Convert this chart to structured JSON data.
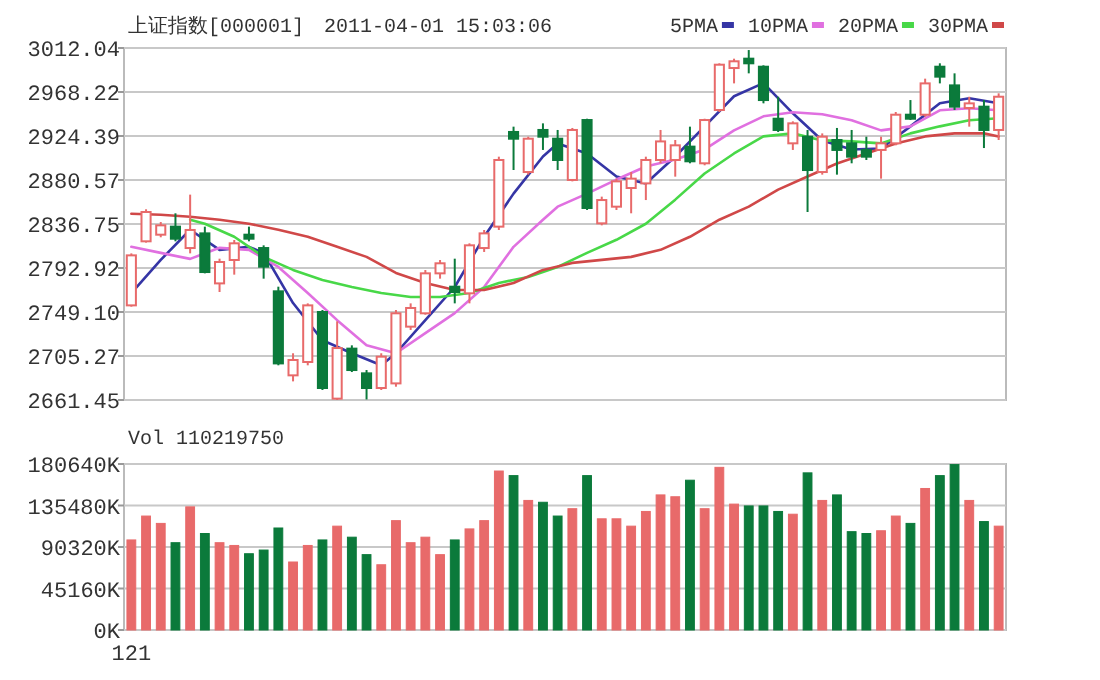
{
  "chart_data": [
    {
      "type": "candlestick",
      "title": "上证指数[000001]",
      "subtitle": "2011-04-01 15:03:06",
      "categories": [
        null,
        null,
        null,
        null,
        null,
        null,
        null,
        null,
        null,
        null,
        null,
        null,
        null,
        null,
        null,
        null,
        null,
        null,
        null,
        null,
        null,
        null,
        null,
        null,
        null,
        null,
        null,
        null,
        null,
        null,
        null,
        null,
        null,
        null,
        null,
        null,
        null,
        null,
        null,
        null,
        null,
        null,
        null,
        null,
        null,
        null,
        null,
        null,
        null,
        null,
        null,
        null,
        null,
        null,
        null,
        null,
        null,
        null,
        null,
        null
      ],
      "ohlc": [
        [
          2755.7,
          2807.5,
          2754.4,
          2805.5
        ],
        [
          2819.5,
          2851.4,
          2818.2,
          2848.7
        ],
        [
          2826.1,
          2838.7,
          2823.5,
          2835.4
        ],
        [
          2834.1,
          2847.4,
          2819.5,
          2822.1
        ],
        [
          2812.8,
          2866,
          2807.5,
          2830.8
        ],
        [
          2827.4,
          2834.1,
          2787.6,
          2788.9
        ],
        [
          2777.6,
          2802.2,
          2769,
          2798.9
        ],
        [
          2800.9,
          2820.8,
          2786.3,
          2817.5
        ],
        [
          2826.1,
          2834.1,
          2819.5,
          2822.1
        ],
        [
          2812.8,
          2815.5,
          2782.3,
          2794.2
        ],
        [
          2769.7,
          2774.3,
          2696,
          2697.9
        ],
        [
          2686,
          2708,
          2680,
          2701.3
        ],
        [
          2699.3,
          2757.7,
          2696,
          2755.7
        ],
        [
          2749.1,
          2751.1,
          2671.4,
          2673.4
        ],
        [
          2662.8,
          2739.8,
          2661.5,
          2713.2
        ],
        [
          2712.6,
          2715.9,
          2689.3,
          2691.3
        ],
        [
          2688,
          2691.3,
          2662,
          2673.4
        ],
        [
          2673.4,
          2708,
          2671.4,
          2704.6
        ],
        [
          2678,
          2751.1,
          2674.7,
          2747.8
        ],
        [
          2734.5,
          2757.7,
          2731.2,
          2753.1
        ],
        [
          2747.8,
          2790.9,
          2746.4,
          2787.6
        ],
        [
          2787.6,
          2800.9,
          2782.3,
          2797.6
        ],
        [
          2774.3,
          2802.2,
          2757.7,
          2769
        ],
        [
          2767.7,
          2817.5,
          2757.7,
          2815.5
        ],
        [
          2812.8,
          2830.8,
          2808.9,
          2827.4
        ],
        [
          2834.1,
          2903.8,
          2830.8,
          2900.5
        ],
        [
          2928.4,
          2933.7,
          2890.5,
          2921.7
        ],
        [
          2888.5,
          2923.7,
          2885.9,
          2921.7
        ],
        [
          2930.4,
          2937,
          2910.5,
          2923.7
        ],
        [
          2921.7,
          2930.4,
          2890.5,
          2900.5
        ],
        [
          2880.6,
          2932.4,
          2879.2,
          2930.4
        ],
        [
          2940.3,
          2941.6,
          2850.7,
          2852.7
        ],
        [
          2837.4,
          2864,
          2835.4,
          2860.6
        ],
        [
          2854,
          2881.9,
          2850.7,
          2879.2
        ],
        [
          2872.6,
          2888.5,
          2847.4,
          2881.9
        ],
        [
          2877.2,
          2903.8,
          2860.6,
          2900.5
        ],
        [
          2900.5,
          2930.4,
          2897.2,
          2919
        ],
        [
          2900.5,
          2920.4,
          2883.9,
          2915.1
        ],
        [
          2913.8,
          2933.7,
          2897.2,
          2899.2
        ],
        [
          2897.2,
          2941.6,
          2895.2,
          2940.3
        ],
        [
          2950.3,
          2996.8,
          2948.3,
          2995.4
        ],
        [
          2992.1,
          3001.4,
          2976.8,
          2998.8
        ],
        [
          3001.4,
          3010,
          2986.8,
          2996.8
        ],
        [
          2993.4,
          2994.8,
          2956.9,
          2960.2
        ],
        [
          2941.6,
          2963.5,
          2928.4,
          2930.4
        ],
        [
          2917.1,
          2939,
          2910.5,
          2937
        ],
        [
          2923.7,
          2930.4,
          2848.7,
          2890.5
        ],
        [
          2888.5,
          2927,
          2885.9,
          2923.7
        ],
        [
          2920.4,
          2932.4,
          2885.9,
          2910.5
        ],
        [
          2917.1,
          2930.4,
          2897.2,
          2903.8
        ],
        [
          2910.5,
          2923.7,
          2900.5,
          2903.8
        ],
        [
          2910.5,
          2923.7,
          2881.9,
          2917.1
        ],
        [
          2917.1,
          2948.3,
          2915.1,
          2945.6
        ],
        [
          2945.6,
          2960.2,
          2940.3,
          2941.6
        ],
        [
          2945.6,
          2981.5,
          2943.6,
          2976.8
        ],
        [
          2993.4,
          2996.8,
          2976.8,
          2983.5
        ],
        [
          2974.8,
          2986.8,
          2950.3,
          2953.6
        ],
        [
          2952.3,
          2963.5,
          2933.7,
          2956.9
        ],
        [
          2953.6,
          2960.2,
          2912.4,
          2930.4
        ],
        [
          2930.4,
          2966.9,
          2920.4,
          2963.5
        ]
      ],
      "colors": [
        "#e86a6a",
        "#e86a6a",
        "#e86a6a",
        "#0b7a3b",
        "#e86a6a",
        "#0b7a3b",
        "#e86a6a",
        "#e86a6a",
        "#0b7a3b",
        "#0b7a3b",
        "#0b7a3b",
        "#e86a6a",
        "#e86a6a",
        "#0b7a3b",
        "#e86a6a",
        "#0b7a3b",
        "#0b7a3b",
        "#e86a6a",
        "#e86a6a",
        "#e86a6a",
        "#e86a6a",
        "#e86a6a",
        "#0b7a3b",
        "#e86a6a",
        "#e86a6a",
        "#e86a6a",
        "#0b7a3b",
        "#e86a6a",
        "#0b7a3b",
        "#0b7a3b",
        "#e86a6a",
        "#0b7a3b",
        "#e86a6a",
        "#e86a6a",
        "#e86a6a",
        "#e86a6a",
        "#e86a6a",
        "#e86a6a",
        "#0b7a3b",
        "#e86a6a",
        "#e86a6a",
        "#e86a6a",
        "#0b7a3b",
        "#0b7a3b",
        "#0b7a3b",
        "#e86a6a",
        "#0b7a3b",
        "#e86a6a",
        "#0b7a3b",
        "#0b7a3b",
        "#0b7a3b",
        "#e86a6a",
        "#e86a6a",
        "#0b7a3b",
        "#e86a6a",
        "#0b7a3b",
        "#0b7a3b",
        "#e86a6a",
        "#0b7a3b",
        "#e86a6a"
      ],
      "series": [
        {
          "type": "line",
          "name": "5PMA",
          "color": "#3535a5",
          "values": [
            2768,
            null,
            2801,
            null,
            2831,
            null,
            2811,
            null,
            2814,
            2808,
            null,
            2758,
            null,
            2721,
            null,
            2708,
            null,
            2696,
            2708,
            null,
            2741,
            null,
            2774,
            null,
            2824,
            null,
            2867,
            null,
            2904,
            2917,
            null,
            2907,
            null,
            2884,
            null,
            2877,
            null,
            2904,
            null,
            2934,
            null,
            2964,
            null,
            2977,
            null,
            2947,
            null,
            2920,
            null,
            2911,
            null,
            2912,
            null,
            2934,
            null,
            2957,
            null,
            2962,
            null,
            2957
          ]
        },
        {
          "type": "line",
          "name": "10PMA",
          "color": "#e070e0",
          "values": [
            2814,
            null,
            2808,
            null,
            2802,
            null,
            2813,
            null,
            2811,
            null,
            2794,
            null,
            2768,
            null,
            2741,
            null,
            2716,
            null,
            2708,
            null,
            2728,
            null,
            2748,
            null,
            2774,
            null,
            2814,
            null,
            2841,
            2854,
            null,
            2867,
            null,
            2881,
            null,
            2894,
            null,
            2901,
            null,
            2911,
            null,
            2930,
            null,
            2944,
            null,
            2948,
            null,
            2946,
            null,
            2940,
            null,
            2930,
            null,
            2934,
            null,
            2950,
            null,
            2952,
            null,
            2950
          ]
        },
        {
          "type": "line",
          "name": "20PMA",
          "color": "#48d848",
          "values": [
            null,
            null,
            null,
            null,
            2841,
            2837,
            null,
            2824,
            null,
            2804,
            null,
            2791,
            null,
            2781,
            null,
            2774,
            null,
            2768,
            null,
            2764,
            null,
            2764,
            null,
            2768,
            null,
            2778,
            null,
            2784,
            null,
            2794,
            null,
            2808,
            null,
            2821,
            null,
            2837,
            null,
            2861,
            null,
            2887,
            null,
            2907,
            null,
            2924,
            null,
            2927,
            null,
            2920,
            null,
            2919,
            null,
            2917,
            null,
            2927,
            null,
            2934,
            null,
            2940,
            null,
            2942
          ]
        },
        {
          "type": "line",
          "name": "30PMA",
          "color": "#d04848",
          "values": [
            2847,
            null,
            2846,
            null,
            2844,
            null,
            2841,
            null,
            2837,
            null,
            2831,
            null,
            2824,
            null,
            2814,
            null,
            2804,
            null,
            2788,
            null,
            2778,
            null,
            2771,
            null,
            2771,
            null,
            2778,
            null,
            2791,
            null,
            2798,
            null,
            2801,
            null,
            2804,
            null,
            2811,
            null,
            2824,
            null,
            2841,
            null,
            2854,
            null,
            2871,
            null,
            2884,
            null,
            2897,
            null,
            2907,
            null,
            2917,
            null,
            2924,
            null,
            2927,
            null,
            2927,
            2924
          ]
        }
      ],
      "ylim": [
        2661.45,
        3012.04
      ],
      "yticks": [
        2661.45,
        2705.27,
        {
          "value": 2749.1,
          "label": "2749.10"
        },
        2792.92,
        2836.75,
        2880.57,
        2924.39,
        2968.22,
        3012.04
      ],
      "grid": "y",
      "legend": "top right",
      "tick_labels": "y"
    },
    {
      "type": "bar",
      "title": "Vol 110219750",
      "categories": [
        "121",
        null,
        null,
        null,
        null,
        null,
        null,
        null,
        null,
        null,
        null,
        null,
        null,
        null,
        null,
        null,
        null,
        null,
        null,
        null,
        null,
        null,
        null,
        null,
        null,
        null,
        null,
        null,
        null,
        null,
        null,
        null,
        null,
        null,
        null,
        null,
        null,
        null,
        null,
        null,
        null,
        null,
        null,
        null,
        null,
        null,
        null,
        null,
        null,
        null,
        null,
        null,
        null,
        null,
        null,
        null,
        null,
        null,
        null,
        null
      ],
      "values": [
        98000,
        124000,
        116000,
        95000,
        134000,
        105000,
        95000,
        92000,
        83000,
        87000,
        111000,
        74000,
        92000,
        98000,
        113000,
        101000,
        82000,
        71000,
        119000,
        95000,
        101000,
        82000,
        98000,
        110000,
        119000,
        173000,
        168000,
        141000,
        139000,
        124000,
        132000,
        168000,
        121000,
        121000,
        113000,
        129000,
        147000,
        145000,
        163000,
        132000,
        177000,
        137000,
        135000,
        135000,
        129000,
        126000,
        171000,
        141000,
        147000,
        107000,
        105000,
        108000,
        124000,
        116000,
        154000,
        168000,
        180000,
        141000,
        118000,
        113000
      ],
      "colors": [
        "#e86a6a",
        "#e86a6a",
        "#e86a6a",
        "#0b7a3b",
        "#e86a6a",
        "#0b7a3b",
        "#e86a6a",
        "#e86a6a",
        "#0b7a3b",
        "#0b7a3b",
        "#0b7a3b",
        "#e86a6a",
        "#e86a6a",
        "#0b7a3b",
        "#e86a6a",
        "#0b7a3b",
        "#0b7a3b",
        "#e86a6a",
        "#e86a6a",
        "#e86a6a",
        "#e86a6a",
        "#e86a6a",
        "#0b7a3b",
        "#e86a6a",
        "#e86a6a",
        "#e86a6a",
        "#0b7a3b",
        "#e86a6a",
        "#0b7a3b",
        "#0b7a3b",
        "#e86a6a",
        "#0b7a3b",
        "#e86a6a",
        "#e86a6a",
        "#e86a6a",
        "#e86a6a",
        "#e86a6a",
        "#e86a6a",
        "#0b7a3b",
        "#e86a6a",
        "#e86a6a",
        "#e86a6a",
        "#0b7a3b",
        "#0b7a3b",
        "#0b7a3b",
        "#e86a6a",
        "#0b7a3b",
        "#e86a6a",
        "#0b7a3b",
        "#0b7a3b",
        "#0b7a3b",
        "#e86a6a",
        "#e86a6a",
        "#0b7a3b",
        "#e86a6a",
        "#0b7a3b",
        "#0b7a3b",
        "#e86a6a",
        "#0b7a3b",
        "#e86a6a"
      ],
      "ylim": [
        0,
        180640
      ],
      "yticks": [
        {
          "value": 0,
          "label": "0K"
        },
        {
          "value": 45160,
          "label": "45160K"
        },
        {
          "value": 90320,
          "label": "90320K"
        },
        {
          "value": 135480,
          "label": "135480K"
        },
        {
          "value": 180640,
          "label": "180640K"
        }
      ],
      "grid": "y"
    }
  ]
}
